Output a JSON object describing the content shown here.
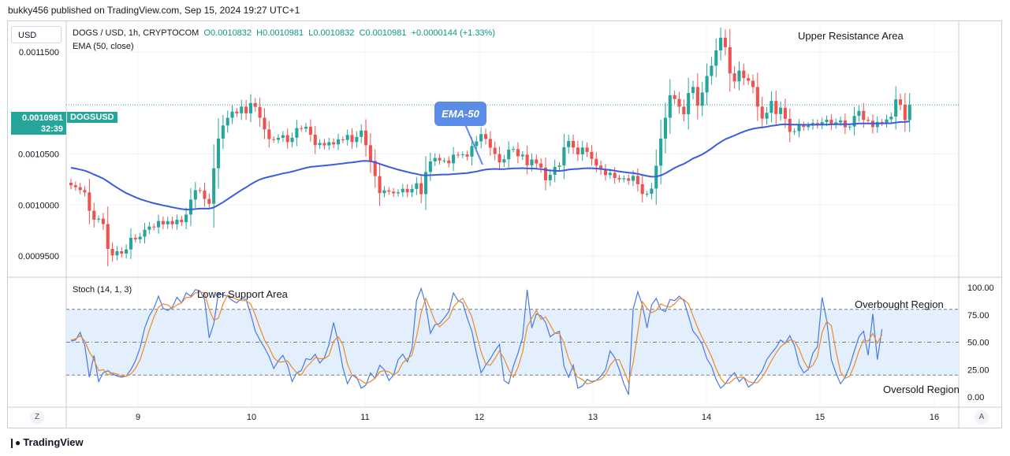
{
  "header": {
    "published": "bukky456 published on TradingView.com, Sep 15, 2024 19:27 UTC+1"
  },
  "currency_button": "USD",
  "legend": {
    "symbol": "DOGS / USD, 1h, CRYPTOCOM",
    "open": "O0.0010832",
    "high": "H0.0010981",
    "low": "L0.0010832",
    "close": "C0.0010981",
    "change": "+0.0000144 (+1.33%)",
    "ema": "EMA (50, close)"
  },
  "stoch_label": "Stoch (14, 1, 3)",
  "price_tag": {
    "price": "0.0010981",
    "countdown": "32:39",
    "symbol": "DOGSUSD"
  },
  "callout": "EMA-50",
  "annotations": {
    "upper": "Upper Resistance Area",
    "lower": "Lower Support Area",
    "overbought": "Overbought Region",
    "oversold": "Oversold Region"
  },
  "bottom_left_button": "Z",
  "bottom_right_button": "A",
  "brand": "TradingView",
  "colors": {
    "up": "#26a69a",
    "down": "#ef5350",
    "ema": "#3a5de0",
    "k": "#4a78e6",
    "d": "#f08a24",
    "band": "#e3effc"
  },
  "chart_data": [
    {
      "type": "candlestick",
      "ylim": [
        0.00093,
        0.00118
      ],
      "y_ticks": [
        "0.0011500",
        "0.0010500",
        "0.0010000",
        "0.0009500"
      ],
      "y_tick_values": [
        0.00115,
        0.00105,
        0.001,
        0.00095
      ],
      "x_ticks": [
        "9",
        "10",
        "11",
        "12",
        "13",
        "14",
        "15",
        "16"
      ],
      "last_price": 0.0010981,
      "close": [
        0.0010193,
        0.0010175,
        0.0010146,
        0.0010123,
        0.0009944,
        0.0009856,
        0.0009866,
        0.0009813,
        0.000957,
        0.0009506,
        0.0009547,
        0.0009524,
        0.0009565,
        0.0009679,
        0.0009664,
        0.0009689,
        0.0009758,
        0.0009789,
        0.0009781,
        0.0009843,
        0.000981,
        0.0009842,
        0.0009811,
        0.0009856,
        0.0009832,
        0.0009906,
        0.0010053,
        0.0010145,
        0.0010142,
        0.0010059,
        0.0010012,
        0.001036,
        0.0010651,
        0.0010779,
        0.0010854,
        0.0010915,
        0.0010898,
        0.0010964,
        0.0010898,
        0.0010999,
        0.0010961,
        0.0010855,
        0.001074,
        0.0010645,
        0.0010639,
        0.0010658,
        0.0010684,
        0.0010616,
        0.0010659,
        0.0010753,
        0.0010748,
        0.0010767,
        0.0010689,
        0.0010587,
        0.0010608,
        0.0010584,
        0.0010615,
        0.0010594,
        0.0010643,
        0.0010637,
        0.0010686,
        0.0010617,
        0.0010667,
        0.0010729,
        0.0010586,
        0.0010432,
        0.0010283,
        0.0010116,
        0.0010143,
        0.0010131,
        0.0010114,
        0.0010124,
        0.0010158,
        0.0010123,
        0.0010157,
        0.0010213,
        0.0010106,
        0.0010323,
        0.0010427,
        0.0010461,
        0.0010436,
        0.0010436,
        0.0010409,
        0.0010493,
        0.0010488,
        0.0010495,
        0.0010474,
        0.0010578,
        0.0010623,
        0.0010695,
        0.0010647,
        0.0010561,
        0.0010499,
        0.0010417,
        0.0010448,
        0.0010543,
        0.0010548,
        0.0010477,
        0.0010493,
        0.0010389,
        0.0010446,
        0.0010407,
        0.0010366,
        0.0010242,
        0.0010296,
        0.0010374,
        0.0010387,
        0.0010566,
        0.0010627,
        0.0010563,
        0.0010496,
        0.0010563,
        0.001052,
        0.0010452,
        0.0010386,
        0.0010345,
        0.0010293,
        0.0010315,
        0.0010264,
        0.0010252,
        0.0010261,
        0.0010237,
        0.0010285,
        0.0010204,
        0.0010108,
        0.001011,
        0.0010161,
        0.0010385,
        0.0010651,
        0.0010855,
        0.0011075,
        0.0011038,
        0.0010963,
        0.0010889,
        0.0011097,
        0.0011156,
        0.0010973,
        0.0011102,
        0.0011264,
        0.0011365,
        0.0011515,
        0.0011639,
        0.0011546,
        0.0011289,
        0.0011211,
        0.0011317,
        0.0011243,
        0.0011217,
        0.0011156,
        0.0010964,
        0.0010846,
        0.0010903,
        0.0011019,
        0.0010891,
        0.0010953,
        0.0010844,
        0.0010716,
        0.0010723,
        0.0010782,
        0.0010764,
        0.0010778,
        0.0010803,
        0.0010784,
        0.0010812,
        0.0010836,
        0.0010787,
        0.0010809,
        0.0010829,
        0.0010761,
        0.0010768,
        0.0010873,
        0.0010922,
        0.0010834,
        0.0010825,
        0.0010763,
        0.0010814,
        0.0010804,
        0.0010839,
        0.0010865,
        0.0011035,
        0.0010983,
        0.0010832,
        0.0010981
      ],
      "open": [
        0.0010218,
        0.0010193,
        0.0010175,
        0.0010146,
        0.0010123,
        0.0009944,
        0.0009856,
        0.0009866,
        0.0009813,
        0.000957,
        0.0009506,
        0.0009547,
        0.0009524,
        0.0009565,
        0.0009679,
        0.0009664,
        0.0009689,
        0.0009758,
        0.0009789,
        0.0009781,
        0.0009843,
        0.000981,
        0.0009842,
        0.0009811,
        0.0009856,
        0.0009832,
        0.0009906,
        0.0010053,
        0.0010145,
        0.0010142,
        0.0010059,
        0.0010012,
        0.001036,
        0.0010651,
        0.0010779,
        0.0010854,
        0.0010915,
        0.0010898,
        0.0010964,
        0.0010898,
        0.0010999,
        0.0010961,
        0.0010855,
        0.001074,
        0.0010645,
        0.0010639,
        0.0010658,
        0.0010684,
        0.0010616,
        0.0010659,
        0.0010753,
        0.0010748,
        0.0010767,
        0.0010689,
        0.0010587,
        0.0010608,
        0.0010584,
        0.0010615,
        0.0010594,
        0.0010643,
        0.0010637,
        0.0010686,
        0.0010617,
        0.0010667,
        0.0010729,
        0.0010586,
        0.0010432,
        0.0010283,
        0.0010116,
        0.0010143,
        0.0010131,
        0.0010114,
        0.0010124,
        0.0010158,
        0.0010123,
        0.0010157,
        0.0010213,
        0.0010106,
        0.0010323,
        0.0010427,
        0.0010461,
        0.0010436,
        0.0010436,
        0.0010409,
        0.0010493,
        0.0010488,
        0.0010495,
        0.0010474,
        0.0010578,
        0.0010623,
        0.0010695,
        0.0010647,
        0.0010561,
        0.0010499,
        0.0010417,
        0.0010448,
        0.0010543,
        0.0010548,
        0.0010477,
        0.0010493,
        0.0010389,
        0.0010446,
        0.0010407,
        0.0010366,
        0.0010242,
        0.0010296,
        0.0010374,
        0.0010387,
        0.0010566,
        0.0010627,
        0.0010563,
        0.0010496,
        0.0010563,
        0.001052,
        0.0010452,
        0.0010386,
        0.0010345,
        0.0010293,
        0.0010315,
        0.0010264,
        0.0010252,
        0.0010261,
        0.0010237,
        0.0010285,
        0.0010204,
        0.0010108,
        0.001011,
        0.0010161,
        0.0010385,
        0.0010651,
        0.0010855,
        0.0011075,
        0.0011038,
        0.0010963,
        0.0010889,
        0.0011097,
        0.0011156,
        0.0010973,
        0.0011102,
        0.0011264,
        0.0011365,
        0.0011515,
        0.0011639,
        0.0011546,
        0.0011289,
        0.0011211,
        0.0011317,
        0.0011243,
        0.0011217,
        0.0011156,
        0.0010964,
        0.0010846,
        0.0010903,
        0.0011019,
        0.0010891,
        0.0010953,
        0.0010844,
        0.0010716,
        0.0010723,
        0.0010782,
        0.0010764,
        0.0010778,
        0.0010803,
        0.0010784,
        0.0010812,
        0.0010836,
        0.0010787,
        0.0010809,
        0.0010829,
        0.0010761,
        0.0010768,
        0.0010873,
        0.0010922,
        0.0010834,
        0.0010825,
        0.0010763,
        0.0010814,
        0.0010804,
        0.0010839,
        0.0010865,
        0.0011035,
        0.0010983,
        0.0010832
      ],
      "ema": [
        0.00103646,
        0.0010357,
        0.00103469,
        0.00103362,
        0.0010319,
        0.00102987,
        0.00102794,
        0.00102589,
        0.00102296,
        0.00101988,
        0.00101704,
        0.00101422,
        0.00101163,
        0.00100961,
        0.0010076,
        0.00100577,
        0.00100429,
        0.00100298,
        0.0010017,
        0.00100071,
        0.00099963,
        0.00099872,
        0.00099772,
        0.00099693,
        0.00099607,
        0.00099554,
        0.00099561,
        0.00099604,
        0.00099644,
        0.0009965,
        0.00099637,
        0.00099762,
        0.00099996,
        0.00100272,
        0.00100566,
        0.00100873,
        0.00101162,
        0.00101465,
        0.00101729,
        0.00102021,
        0.00102286,
        0.00102497,
        0.00102654,
        0.00102764,
        0.00102868,
        0.00102976,
        0.0010309,
        0.00103172,
        0.00103268,
        0.00103397,
        0.00103519,
        0.00103643,
        0.00103731,
        0.00103775,
        0.00103825,
        0.00103864,
        0.00103914,
        0.00103953,
        0.0010401,
        0.00104062,
        0.00104131,
        0.0010417,
        0.00104227,
        0.00104306,
        0.00104326,
        0.00104284,
        0.00104184,
        0.00104023,
        0.00103879,
        0.00103736,
        0.00103593,
        0.00103463,
        0.00103351,
        0.00103229,
        0.00103125,
        0.00103046,
        0.00102929,
        0.00102903,
        0.00102919,
        0.00102948,
        0.00102966,
        0.00102983,
        0.00102989,
        0.00103028,
        0.00103064,
        0.00103101,
        0.00103129,
        0.00103197,
        0.00103279,
        0.00103385,
        0.00103467,
        0.00103512,
        0.00103531,
        0.00103518,
        0.00103517,
        0.00103553,
        0.0010359,
        0.00103597,
        0.00103611,
        0.00103582,
        0.00103577,
        0.00103556,
        0.0010352,
        0.00103437,
        0.00103378,
        0.00103352,
        0.00103333,
        0.00103389,
        0.00103466,
        0.00103514,
        0.00103533,
        0.00103577,
        0.00103603,
        0.00103601,
        0.00103574,
        0.00103532,
        0.00103472,
        0.00103423,
        0.00103356,
        0.00103287,
        0.00103225,
        0.00103162,
        0.00103122,
        0.00103052,
        0.00102946,
        0.00102846,
        0.0010277,
        0.00102785,
        0.00102903,
        0.00103098,
        0.00103373,
        0.0010363,
        0.00103847,
        0.00104026,
        0.00104284,
        0.00104557,
        0.00104741,
        0.00104958,
        0.00105233,
        0.00105537,
        0.0010587,
        0.00106175,
        0.00106442,
        0.00106623,
        0.00106808,
        0.00107014,
        0.00107191,
        0.00107344,
        0.00107468,
        0.00107545,
        0.00107596,
        0.00107657,
        0.00107761,
        0.0010781,
        0.00107882,
        0.00107909,
        0.00107885,
        0.00107867,
        0.00107872,
        0.00107862,
        0.00107859,
        0.00107866,
        0.00107863,
        0.00107871,
        0.00107888,
        0.00107892,
        0.00107905,
        0.00107924,
        0.00107916,
        0.00107909,
        0.00107936,
        0.00107982,
        0.00107991,
        0.00107991,
        0.00107976,
        0.00107983,
        0.00107987,
        0.00107998,
        0.0010801,
        0.00108081,
        0.00108129,
        0.00108131,
        0.00108197
      ]
    },
    {
      "type": "line",
      "ylim": [
        0,
        100
      ],
      "y_ticks": [
        "100.00",
        "75.00",
        "50.00",
        "25.00",
        "0.00"
      ],
      "y_tick_values": [
        100,
        75,
        50,
        25,
        0
      ],
      "bands": [
        20,
        50,
        80
      ],
      "series": [
        {
          "values": [
            51,
            52,
            59,
            47,
            18,
            38,
            14,
            22,
            24,
            21,
            19,
            18,
            19,
            25,
            33,
            45,
            63,
            74,
            81,
            92,
            81,
            79,
            82,
            91,
            86,
            95,
            92,
            98,
            97,
            89,
            54,
            67,
            95,
            93,
            92,
            88,
            86,
            90,
            89,
            76,
            60,
            52,
            45,
            37,
            26,
            33,
            38,
            29,
            14,
            22,
            24,
            35,
            34,
            39,
            31,
            36,
            48,
            68,
            50,
            27,
            12,
            20,
            18,
            8,
            11,
            22,
            17,
            29,
            25,
            15,
            20,
            34,
            39,
            32,
            44,
            88,
            99,
            84,
            58,
            66,
            67,
            72,
            78,
            95,
            88,
            86,
            72,
            60,
            40,
            22,
            29,
            35,
            42,
            48,
            15,
            12,
            28,
            40,
            54,
            98,
            63,
            76,
            74,
            68,
            55,
            58,
            60,
            28,
            18,
            29,
            8,
            10,
            16,
            14,
            15,
            19,
            25,
            42,
            36,
            25,
            12,
            2,
            80,
            96,
            84,
            63,
            84,
            90,
            80,
            78,
            89,
            88,
            92,
            88,
            74,
            60,
            55,
            48,
            35,
            28,
            16,
            8,
            12,
            18,
            22,
            14,
            18,
            9,
            12,
            18,
            24,
            34,
            40,
            45,
            52,
            49,
            56,
            47,
            30,
            22,
            25,
            40,
            46,
            91,
            70,
            34,
            22,
            12,
            18,
            28,
            42,
            55,
            60,
            38,
            76,
            34,
            62
          ]
        },
        {
          "values": [
            52,
            53,
            56,
            51,
            41,
            34,
            24,
            25,
            20,
            22,
            21,
            19,
            19,
            21,
            26,
            34,
            47,
            61,
            73,
            82,
            85,
            84,
            81,
            84,
            86,
            91,
            91,
            95,
            96,
            95,
            80,
            70,
            72,
            85,
            93,
            91,
            89,
            88,
            88,
            85,
            75,
            63,
            52,
            45,
            36,
            32,
            32,
            33,
            27,
            22,
            20,
            27,
            31,
            36,
            35,
            35,
            38,
            51,
            55,
            48,
            30,
            20,
            17,
            15,
            12,
            14,
            17,
            23,
            24,
            23,
            20,
            23,
            31,
            35,
            38,
            55,
            77,
            90,
            80,
            69,
            64,
            68,
            72,
            82,
            87,
            90,
            82,
            73,
            57,
            41,
            30,
            29,
            35,
            42,
            35,
            25,
            18,
            27,
            41,
            64,
            72,
            79,
            71,
            73,
            66,
            58,
            58,
            49,
            35,
            25,
            18,
            16,
            12,
            13,
            15,
            16,
            20,
            29,
            34,
            34,
            24,
            13,
            31,
            59,
            87,
            81,
            77,
            79,
            85,
            83,
            82,
            85,
            90,
            89,
            85,
            74,
            63,
            54,
            46,
            37,
            26,
            17,
            12,
            13,
            17,
            18,
            18,
            14,
            13,
            13,
            18,
            25,
            33,
            40,
            46,
            49,
            52,
            51,
            44,
            33,
            26,
            29,
            37,
            59,
            69,
            65,
            42,
            23,
            17,
            19,
            29,
            42,
            52,
            51,
            58,
            49,
            57
          ]
        }
      ]
    }
  ]
}
